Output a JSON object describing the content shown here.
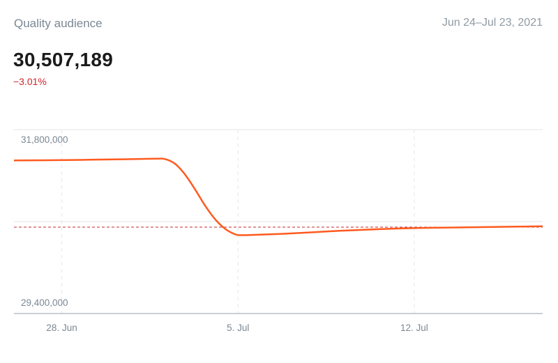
{
  "header": {
    "title": "Quality audience",
    "date_range": "Jun 24–Jul 23, 2021",
    "value": "30,507,189",
    "change": "−3.01%"
  },
  "colors": {
    "line": "#ff5a1f",
    "reference": "#c0272d",
    "grid": "#e3e6ea",
    "axis_text": "#7a8894"
  },
  "chart_data": {
    "type": "line",
    "title": "Quality audience",
    "xlabel": "",
    "ylabel": "",
    "x_ticks": [
      {
        "label": "28. Jun",
        "day": 3.9
      },
      {
        "label": "5. Jul",
        "day": 10.9
      },
      {
        "label": "12. Jul",
        "day": 17.9
      }
    ],
    "y_ticks": [
      {
        "label": "31,800,000",
        "value": 31800000
      },
      {
        "label": "29,400,000",
        "value": 29400000
      }
    ],
    "ylim": [
      29400000,
      31800000
    ],
    "xlim": [
      2,
      23
    ],
    "reference_line": {
      "value": 30507189,
      "style": "dashed"
    },
    "series": [
      {
        "x": [
          2,
          4,
          6,
          7.6,
          8,
          8.4,
          8.8,
          9.2,
          9.6,
          10,
          10.4,
          10.8,
          11,
          11.4,
          12,
          13,
          14,
          15,
          16,
          17,
          18,
          19,
          20,
          21,
          22,
          23
        ],
        "y": [
          31490000,
          31495000,
          31505000,
          31515000,
          31510000,
          31440000,
          31280000,
          31060000,
          30820000,
          30620000,
          30480000,
          30400000,
          30390000,
          30392000,
          30400000,
          30415000,
          30435000,
          30455000,
          30470000,
          30485000,
          30495000,
          30500000,
          30505000,
          30510000,
          30515000,
          30520000
        ]
      }
    ],
    "grid": true
  }
}
